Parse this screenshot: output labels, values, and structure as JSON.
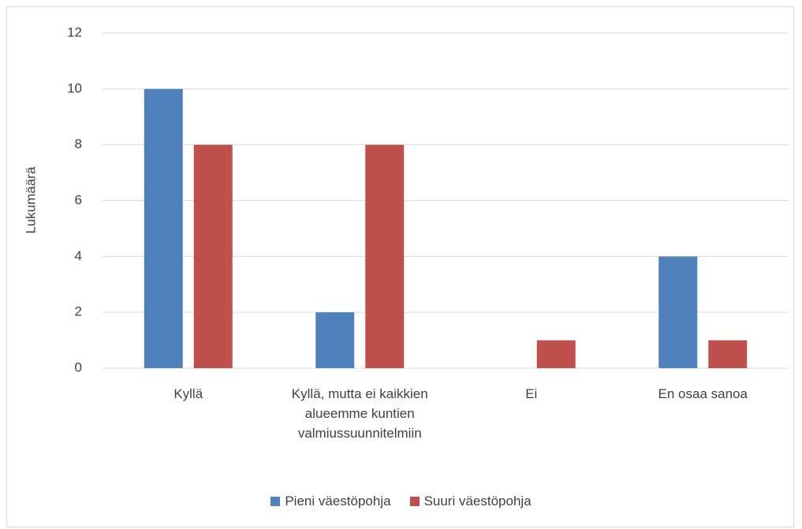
{
  "chart_data": {
    "type": "bar",
    "categories": [
      "Kyllä",
      "Kyllä, mutta ei kaikkien alueemme kuntien valmiussuunnitelmiin",
      "Ei",
      "En osaa sanoa"
    ],
    "series": [
      {
        "name": "Pieni väestöpohja",
        "color": "#4f81bd",
        "values": [
          10,
          2,
          0,
          4
        ]
      },
      {
        "name": "Suuri väestöpohja",
        "color": "#c0504d",
        "values": [
          8,
          8,
          1,
          1
        ]
      }
    ],
    "y_label": "Lukumäärä",
    "ylim": [
      0,
      12
    ],
    "yticks": [
      0,
      2,
      4,
      6,
      8,
      10,
      12
    ],
    "grid": true,
    "legend": "bottom"
  }
}
